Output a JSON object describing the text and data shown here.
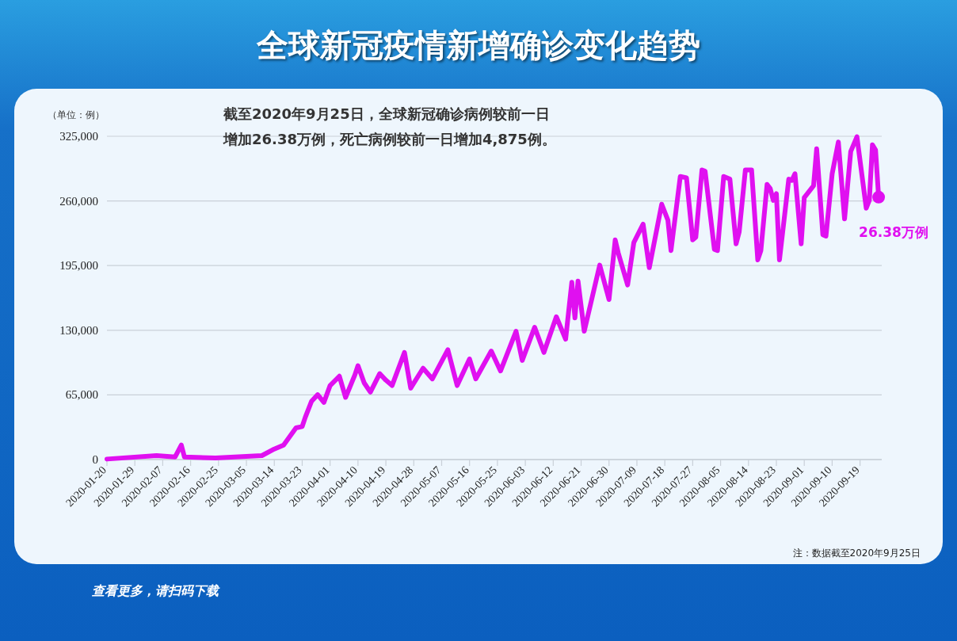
{
  "chart_data": {
    "type": "line",
    "title": "全球新冠疫情新增确诊变化趋势",
    "subtitle": "截至2020年9月25日，全球新冠确诊病例较前一日增加26.38万例，死亡病例较前一日增加4,875例。",
    "ylabel": "（单位：例）",
    "annotations": [
      {
        "text": "26.38万例",
        "x": "2020-09-25",
        "y": 263800
      },
      "注：数据截至2020年9月25日",
      "查看更多，请扫码下载"
    ],
    "x": [
      "2020-01-20",
      "2020-02-05",
      "2020-02-11",
      "2020-02-13",
      "2020-02-14",
      "2020-02-24",
      "2020-03-10",
      "2020-03-14",
      "2020-03-17",
      "2020-03-21",
      "2020-03-23",
      "2020-03-24",
      "2020-03-26",
      "2020-03-28",
      "2020-03-30",
      "2020-04-01",
      "2020-04-04",
      "2020-04-06",
      "2020-04-09",
      "2020-04-10",
      "2020-04-12",
      "2020-04-14",
      "2020-04-17",
      "2020-04-19",
      "2020-04-21",
      "2020-04-25",
      "2020-04-27",
      "2020-05-01",
      "2020-05-04",
      "2020-05-09",
      "2020-05-12",
      "2020-05-16",
      "2020-05-18",
      "2020-05-23",
      "2020-05-26",
      "2020-05-31",
      "2020-06-02",
      "2020-06-06",
      "2020-06-09",
      "2020-06-13",
      "2020-06-16",
      "2020-06-18",
      "2020-06-19",
      "2020-06-20",
      "2020-06-22",
      "2020-06-27",
      "2020-06-30",
      "2020-07-02",
      "2020-07-03",
      "2020-07-06",
      "2020-07-08",
      "2020-07-11",
      "2020-07-13",
      "2020-07-17",
      "2020-07-19",
      "2020-07-20",
      "2020-07-23",
      "2020-07-25",
      "2020-07-27",
      "2020-07-28",
      "2020-07-30",
      "2020-07-31",
      "2020-08-03",
      "2020-08-04",
      "2020-08-06",
      "2020-08-08",
      "2020-08-10",
      "2020-08-11",
      "2020-08-13",
      "2020-08-15",
      "2020-08-17",
      "2020-08-18",
      "2020-08-20",
      "2020-08-21",
      "2020-08-22",
      "2020-08-23",
      "2020-08-24",
      "2020-08-27",
      "2020-08-28",
      "2020-08-29",
      "2020-08-31",
      "2020-09-01",
      "2020-09-04",
      "2020-09-05",
      "2020-09-07",
      "2020-09-08",
      "2020-09-10",
      "2020-09-12",
      "2020-09-14",
      "2020-09-16",
      "2020-09-18",
      "2020-09-21",
      "2020-09-22",
      "2020-09-23",
      "2020-09-24",
      "2020-09-25"
    ],
    "series": [
      {
        "color": "#e010f0",
        "values": [
          500,
          4000,
          2600,
          14600,
          2500,
          1500,
          4000,
          10600,
          14600,
          31900,
          33200,
          42500,
          58500,
          65200,
          57400,
          74400,
          83800,
          62500,
          85100,
          94400,
          77100,
          67800,
          86400,
          79800,
          74400,
          107700,
          71800,
          91800,
          81100,
          110400,
          74400,
          101100,
          81100,
          109100,
          89100,
          129000,
          99700,
          133000,
          107700,
          143600,
          121000,
          178200,
          142300,
          179500,
          129000,
          195500,
          160900,
          220800,
          207500,
          175500,
          218100,
          236700,
          192900,
          256700,
          240700,
          210100,
          284600,
          283300,
          220800,
          223400,
          291200,
          290000,
          211400,
          210100,
          284600,
          281900,
          216800,
          228800,
          291200,
          291200,
          200800,
          210100,
          276600,
          272600,
          260600,
          267300,
          200800,
          281900,
          280600,
          287300,
          216800,
          263300,
          275300,
          312500,
          226100,
          224700,
          287300,
          319200,
          242000,
          309800,
          324500,
          252700,
          260700,
          316500,
          311200,
          263800
        ]
      }
    ],
    "xlim": [
      "2020-01-20",
      "2020-09-26"
    ],
    "xticks": [
      "2020-01-20",
      "2020-01-29",
      "2020-02-07",
      "2020-02-16",
      "2020-02-25",
      "2020-03-05",
      "2020-03-14",
      "2020-03-23",
      "2020-04-01",
      "2020-04-10",
      "2020-04-19",
      "2020-04-28",
      "2020-05-07",
      "2020-05-16",
      "2020-05-25",
      "2020-06-03",
      "2020-06-12",
      "2020-06-21",
      "2020-06-30",
      "2020-07-09",
      "2020-07-18",
      "2020-07-27",
      "2020-08-05",
      "2020-08-14",
      "2020-08-23",
      "2020-09-01",
      "2020-09-10",
      "2020-09-19"
    ],
    "ylim": [
      0,
      325000
    ],
    "yticks": [
      0,
      {
        "value": 65000,
        "label": "65,000"
      },
      {
        "value": 130000,
        "label": "130,000"
      },
      {
        "value": 195000,
        "label": "195,000"
      },
      {
        "value": 260000,
        "label": "260,000"
      },
      {
        "value": 325000,
        "label": "325,000"
      }
    ],
    "grid": "y"
  }
}
